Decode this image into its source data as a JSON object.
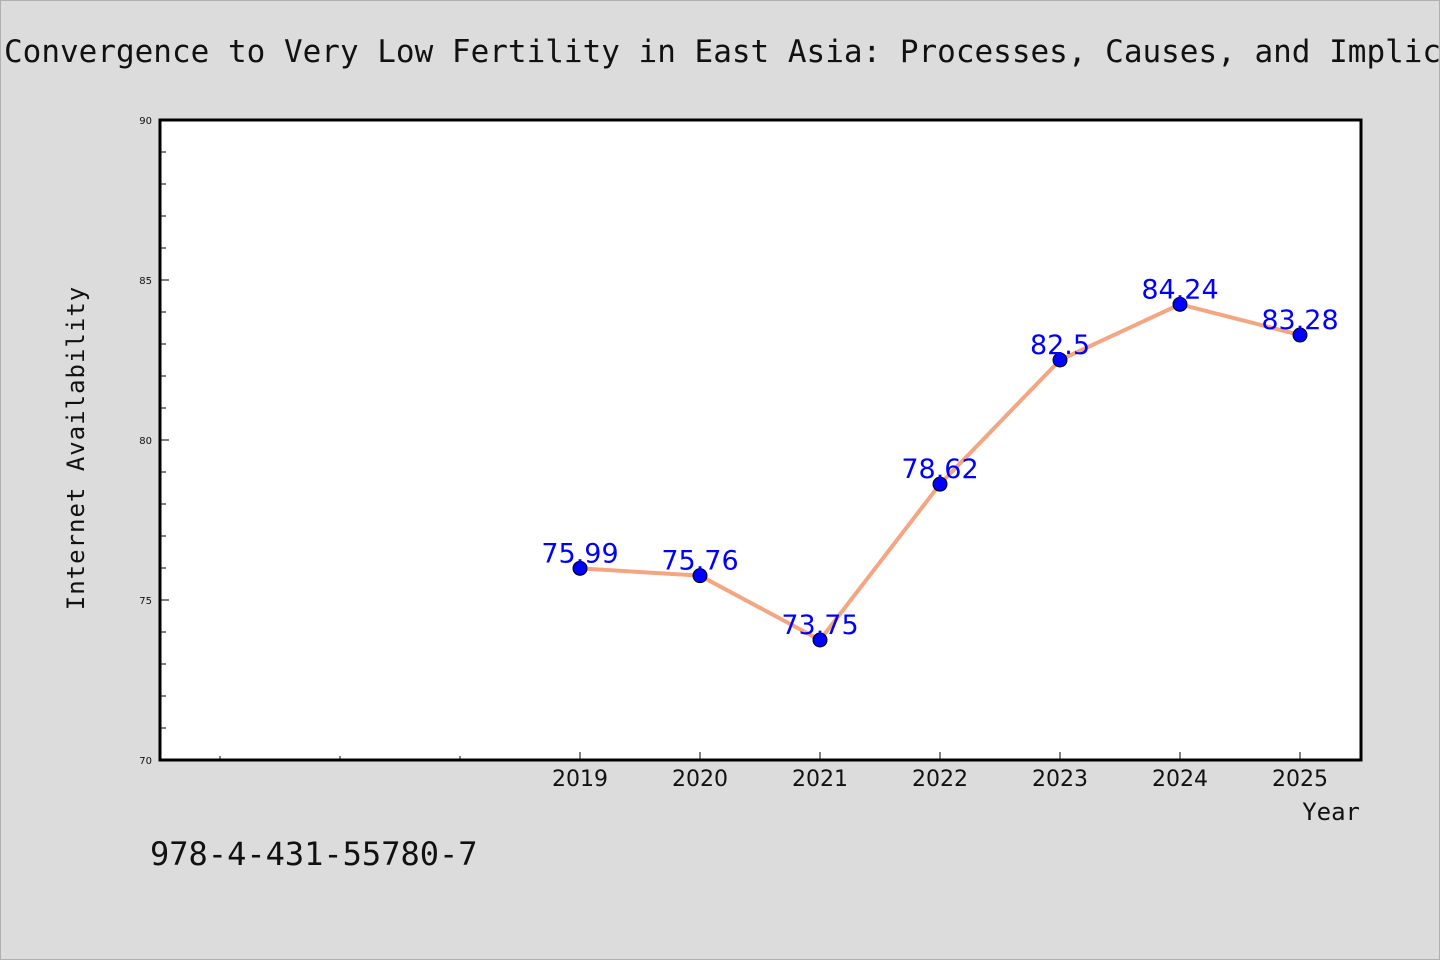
{
  "chart_data": {
    "type": "line",
    "title": "Convergence to Very Low Fertility in East Asia: Processes, Causes, and Implications",
    "xlabel": "Year",
    "ylabel": "Internet Availability",
    "x": [
      "2019",
      "2020",
      "2021",
      "2022",
      "2023",
      "2024",
      "2025"
    ],
    "series": [
      {
        "values": [
          75.99,
          75.76,
          73.75,
          78.62,
          82.5,
          84.24,
          83.28
        ],
        "labels": [
          "75.99",
          "75.76",
          "73.75",
          "78.62",
          "82.5",
          "84.24",
          "83.28"
        ]
      }
    ],
    "ylim": [
      70,
      90
    ],
    "yticks": [
      "70",
      "75",
      "80",
      "85",
      "90"
    ],
    "grid": false,
    "legend": "none",
    "colors": {
      "line": "#f4a582",
      "marker": "#0000ff",
      "label": "#0000ff",
      "plot_bg": "#ffffff",
      "page_bg": "#dcdcdc"
    }
  },
  "footer": {
    "isbn": "978-4-431-55780-7"
  }
}
